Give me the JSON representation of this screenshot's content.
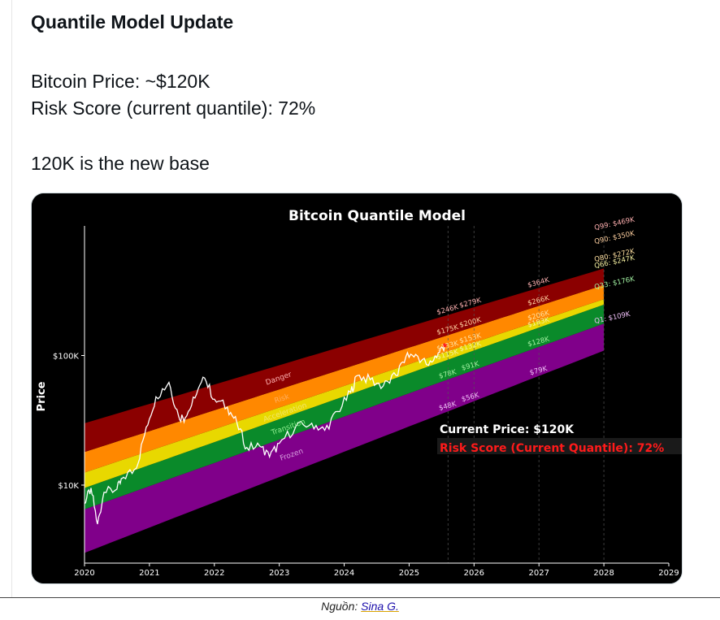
{
  "post": {
    "heading": "Quantile Model Update",
    "line1": "Bitcoin Price: ~$120K",
    "line2": "Risk Score (current quantile): 72%",
    "line3": "120K is the new base"
  },
  "caption": {
    "prefix": "Nguồn: ",
    "link": "Sina G."
  },
  "chart_data": {
    "type": "area",
    "title": "Bitcoin Quantile Model",
    "ylabel": "Price",
    "yscale": "log",
    "ylim": [
      2500,
      1000000
    ],
    "xlim": [
      2020,
      2029
    ],
    "x_ticks": [
      "2020",
      "2021",
      "2022",
      "2023",
      "2024",
      "2025",
      "2026",
      "2027",
      "2028",
      "2029"
    ],
    "y_ticks": [
      {
        "value": 10000,
        "label": "$10K"
      },
      {
        "value": 100000,
        "label": "$100K"
      }
    ],
    "band_colors": [
      "#80008a",
      "#0a8a2a",
      "#e8d800",
      "#ff8800",
      "#8b0000"
    ],
    "zone_labels": [
      {
        "text": "Frozen",
        "color": "#d8a0e0"
      },
      {
        "text": "Transition",
        "color": "#90ee90"
      },
      {
        "text": "Acceleration",
        "color": "#f2e66a"
      },
      {
        "text": "Risk",
        "color": "#ffb060"
      },
      {
        "text": "Danger",
        "color": "#ffb0b0"
      }
    ],
    "quantile_lines": [
      {
        "name": "Q1",
        "x": [
          2020,
          2028
        ],
        "y": [
          3000,
          109000
        ]
      },
      {
        "name": "Q33",
        "x": [
          2020,
          2028
        ],
        "y": [
          6500,
          176000
        ]
      },
      {
        "name": "Q66",
        "x": [
          2020,
          2028
        ],
        "y": [
          9500,
          247000
        ]
      },
      {
        "name": "Q80",
        "x": [
          2020,
          2028
        ],
        "y": [
          12500,
          272000
        ]
      },
      {
        "name": "Q90",
        "x": [
          2020,
          2028
        ],
        "y": [
          18000,
          350000
        ]
      },
      {
        "name": "Q99",
        "x": [
          2020,
          2028
        ],
        "y": [
          30000,
          469000
        ]
      }
    ],
    "end_labels": [
      {
        "text": "Q99: $469K",
        "color": "#ffb0b0"
      },
      {
        "text": "Q90: $350K",
        "color": "#ffd0a0"
      },
      {
        "text": "Q80: $272K",
        "color": "#ffe0a0"
      },
      {
        "text": "Q66: $247K",
        "color": "#f4f0a0"
      },
      {
        "text": "Q33: $176K",
        "color": "#a0f0a0"
      },
      {
        "text": "Q1: $109K",
        "color": "#f0c0f8"
      }
    ],
    "year_labels": [
      {
        "year": 2025.6,
        "texts": [
          "$246K",
          "$175K",
          "$133K",
          "$115K",
          "$78K",
          "$48K"
        ]
      },
      {
        "year": 2025.95,
        "texts": [
          "$279K",
          "$200K",
          "$153K",
          "$132K",
          "$91K",
          "$56K"
        ]
      },
      {
        "year": 2027,
        "texts": [
          "$364K",
          "$266K",
          "$206K",
          "$183K",
          "$128K",
          "$79K"
        ]
      }
    ],
    "price_series": {
      "name": "Bitcoin Price",
      "points": [
        [
          2020.0,
          7200
        ],
        [
          2020.1,
          9500
        ],
        [
          2020.2,
          5000
        ],
        [
          2020.3,
          8800
        ],
        [
          2020.5,
          9300
        ],
        [
          2020.6,
          11500
        ],
        [
          2020.8,
          13500
        ],
        [
          2020.95,
          28000
        ],
        [
          2021.1,
          48000
        ],
        [
          2021.3,
          62000
        ],
        [
          2021.45,
          34000
        ],
        [
          2021.55,
          33000
        ],
        [
          2021.7,
          47000
        ],
        [
          2021.85,
          67000
        ],
        [
          2022.0,
          46000
        ],
        [
          2022.2,
          40000
        ],
        [
          2022.35,
          30000
        ],
        [
          2022.5,
          19500
        ],
        [
          2022.7,
          20000
        ],
        [
          2022.85,
          16500
        ],
        [
          2023.0,
          21000
        ],
        [
          2023.25,
          28000
        ],
        [
          2023.5,
          30000
        ],
        [
          2023.7,
          26500
        ],
        [
          2023.9,
          37000
        ],
        [
          2024.1,
          52000
        ],
        [
          2024.2,
          70000
        ],
        [
          2024.4,
          65000
        ],
        [
          2024.6,
          58000
        ],
        [
          2024.8,
          70000
        ],
        [
          2024.95,
          98000
        ],
        [
          2025.1,
          102000
        ],
        [
          2025.3,
          84000
        ],
        [
          2025.45,
          105000
        ],
        [
          2025.55,
          120000
        ]
      ]
    },
    "current_price_label": "Current Price: $120K",
    "risk_score_label": "Risk Score (Current Quantile): 72%"
  }
}
